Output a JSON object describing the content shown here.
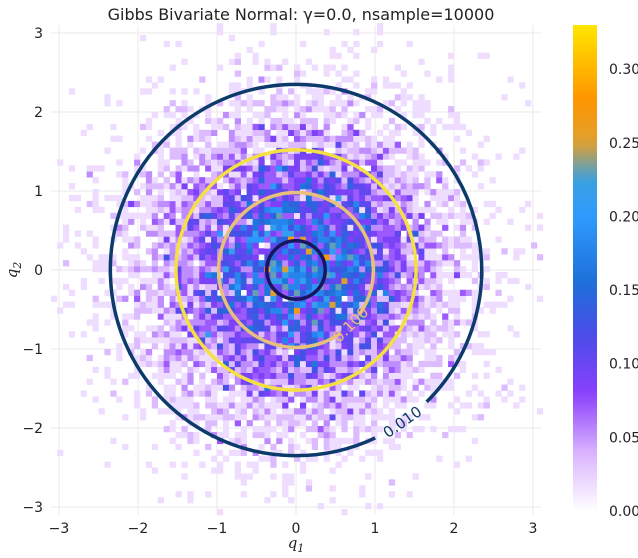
{
  "chart_data": {
    "type": "heatmap",
    "title": "Gibbs Bivariate Normal: γ=0.0, nsample=10000",
    "xlabel": "q",
    "xlabel_sub": "1",
    "ylabel": "q",
    "ylabel_sub": "2",
    "xlim": [
      -3.1,
      3.1
    ],
    "ylim": [
      -3.1,
      3.1
    ],
    "xticks": [
      -3,
      -2,
      -1,
      0,
      1,
      2,
      3
    ],
    "yticks": [
      -3,
      -2,
      -1,
      0,
      1,
      2,
      3
    ],
    "grid": true,
    "distribution": {
      "kind": "2D histogram of Gibbs samples from a bivariate normal",
      "mean": [
        0,
        0
      ],
      "std": [
        1,
        1
      ],
      "correlation": 0.0,
      "n_samples": 10000,
      "bin_width": 0.075
    },
    "colorbar": {
      "range": [
        0.0,
        0.33
      ],
      "ticks": [
        0.0,
        0.05,
        0.1,
        0.15,
        0.2,
        0.25,
        0.3
      ],
      "tick_labels": [
        "0.00",
        "0.05",
        "0.10",
        "0.15",
        "0.20",
        "0.25",
        "0.30"
      ],
      "stops": [
        {
          "v": 0.0,
          "color": "#ffffff"
        },
        {
          "v": 0.04,
          "color": "#d9b3ff"
        },
        {
          "v": 0.08,
          "color": "#8a3ffc"
        },
        {
          "v": 0.12,
          "color": "#4a4de8"
        },
        {
          "v": 0.155,
          "color": "#1e6fd9"
        },
        {
          "v": 0.2,
          "color": "#2e9bff"
        },
        {
          "v": 0.225,
          "color": "#3aa0e0"
        },
        {
          "v": 0.25,
          "color": "#e0a030"
        },
        {
          "v": 0.28,
          "color": "#ff9500"
        },
        {
          "v": 0.33,
          "color": "#ffe600"
        }
      ]
    },
    "contours": [
      {
        "radius": 2.35,
        "color": "#0b3a6b",
        "label": "0.010",
        "label_angle_deg": -55
      },
      {
        "radius": 1.52,
        "color": "#f5e042",
        "label": "",
        "label_angle_deg": null
      },
      {
        "radius": 0.98,
        "color": "#e8c07a",
        "label": "0.100",
        "label_angle_deg": -45
      },
      {
        "radius": 0.37,
        "color": "#1a1460",
        "label": "",
        "label_angle_deg": null
      }
    ]
  }
}
